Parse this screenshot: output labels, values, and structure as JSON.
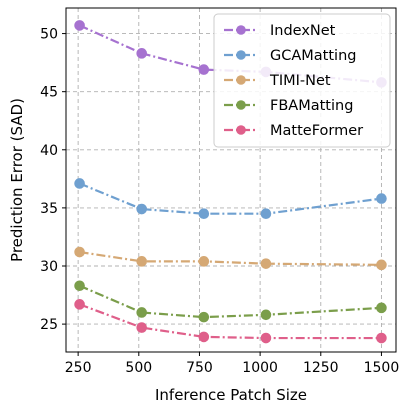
{
  "chart_data": {
    "type": "line",
    "xlabel": "Inference Patch Size",
    "ylabel": "Prediction Error (SAD)",
    "x": [
      256,
      512,
      768,
      1024,
      1500
    ],
    "xlim": [
      200,
      1560
    ],
    "ylim": [
      22.6,
      52.2
    ],
    "xticks": [
      250,
      500,
      750,
      1000,
      1250,
      1500
    ],
    "yticks": [
      25,
      30,
      35,
      40,
      45,
      50
    ],
    "grid": true,
    "legend_position": "top-right",
    "series": [
      {
        "name": "IndexNet",
        "color": "#a672d0",
        "values": [
          50.7,
          48.3,
          46.9,
          46.7,
          45.8
        ]
      },
      {
        "name": "GCAMatting",
        "color": "#6fa0d0",
        "values": [
          37.1,
          34.9,
          34.5,
          34.5,
          35.8
        ]
      },
      {
        "name": "TIMI-Net",
        "color": "#d5a874",
        "values": [
          31.2,
          30.4,
          30.4,
          30.2,
          30.1
        ]
      },
      {
        "name": "FBAMatting",
        "color": "#7b9e4b",
        "values": [
          28.3,
          26.0,
          25.6,
          25.8,
          26.4
        ]
      },
      {
        "name": "MatteFormer",
        "color": "#df5f8a",
        "values": [
          26.7,
          24.7,
          23.9,
          23.8,
          23.8
        ]
      }
    ]
  }
}
